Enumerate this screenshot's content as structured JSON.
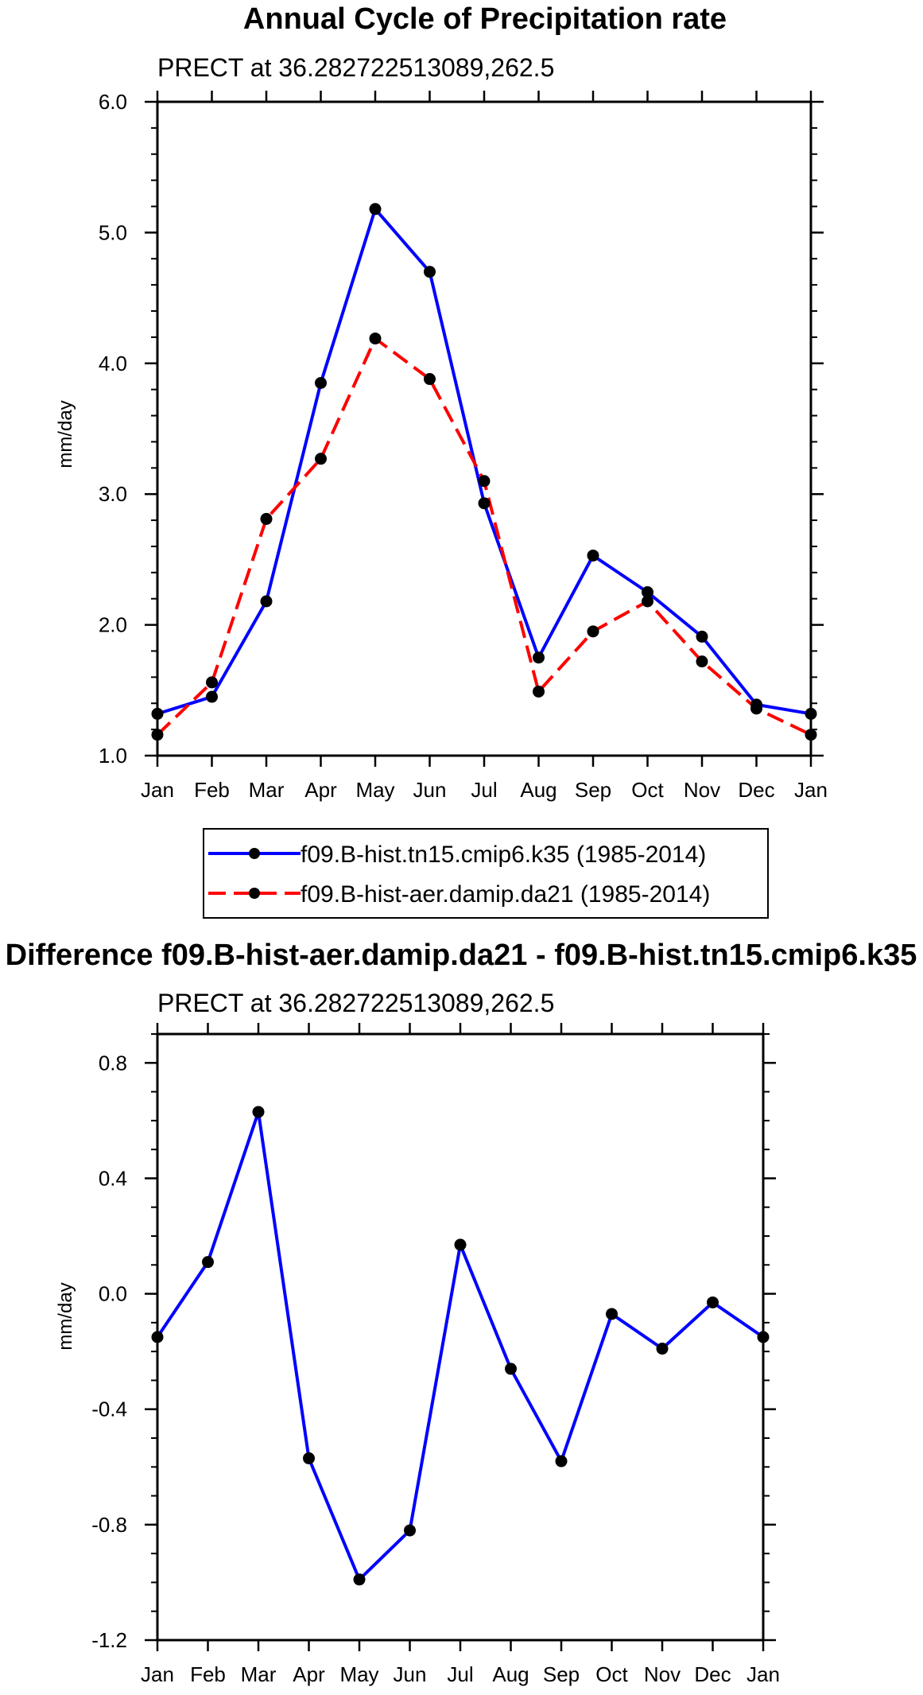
{
  "chart_data": [
    {
      "type": "line",
      "title": "Annual Cycle of Precipitation rate",
      "subtitle": "PRECT at 36.282722513089,262.5",
      "ylabel": "mm/day",
      "ylim": [
        1.0,
        6.0
      ],
      "yticks": [
        1.0,
        2.0,
        3.0,
        4.0,
        5.0,
        6.0
      ],
      "ytick_labels": [
        "1.0",
        "2.0",
        "3.0",
        "4.0",
        "5.0",
        "6.0"
      ],
      "yminor_step": 0.2,
      "categories": [
        "Jan",
        "Feb",
        "Mar",
        "Apr",
        "May",
        "Jun",
        "Jul",
        "Aug",
        "Sep",
        "Oct",
        "Nov",
        "Dec",
        "Jan"
      ],
      "series": [
        {
          "name": "f09.B-hist.tn15.cmip6.k35 (1985-2014)",
          "color": "#0000ff",
          "dash": "solid",
          "values": [
            1.32,
            1.45,
            2.18,
            3.85,
            5.18,
            4.7,
            2.93,
            1.75,
            2.53,
            2.25,
            1.91,
            1.39,
            1.32
          ]
        },
        {
          "name": "f09.B-hist-aer.damip.da21 (1985-2014)",
          "color": "#ff0000",
          "dash": "dashed",
          "values": [
            1.16,
            1.56,
            2.81,
            3.27,
            4.19,
            3.88,
            3.1,
            1.49,
            1.95,
            2.18,
            1.72,
            1.36,
            1.16
          ]
        }
      ]
    },
    {
      "type": "line",
      "title": "Difference f09.B-hist-aer.damip.da21 - f09.B-hist.tn15.cmip6.k35",
      "subtitle": "PRECT at 36.282722513089,262.5",
      "ylabel": "mm/day",
      "ylim": [
        -1.2,
        0.9
      ],
      "yticks": [
        -1.2,
        -0.8,
        -0.4,
        0.0,
        0.4,
        0.8
      ],
      "ytick_labels": [
        "-1.2",
        "-0.8",
        "-0.4",
        "0.0",
        "0.4",
        "0.8"
      ],
      "yminor_step": 0.1,
      "categories": [
        "Jan",
        "Feb",
        "Mar",
        "Apr",
        "May",
        "Jun",
        "Jul",
        "Aug",
        "Sep",
        "Oct",
        "Nov",
        "Dec",
        "Jan"
      ],
      "series": [
        {
          "name": "difference",
          "color": "#0000ff",
          "dash": "solid",
          "values": [
            -0.15,
            0.11,
            0.63,
            -0.57,
            -0.99,
            -0.82,
            0.17,
            -0.26,
            -0.58,
            -0.07,
            -0.19,
            -0.03,
            -0.15
          ]
        }
      ]
    }
  ]
}
